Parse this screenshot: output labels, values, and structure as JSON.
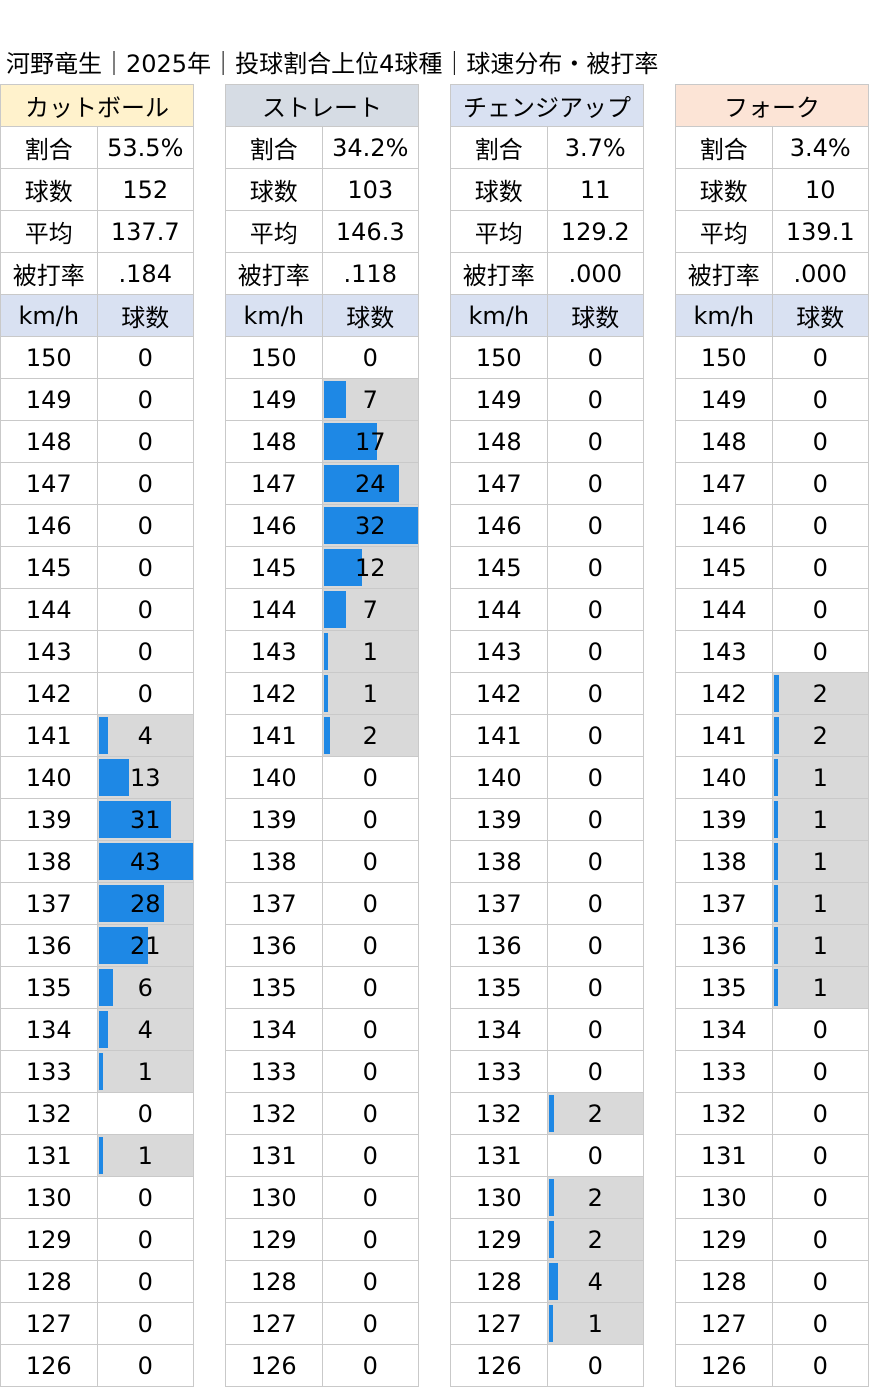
{
  "title": "河野竜生｜2025年｜投球割合上位4球種｜球速分布・被打率",
  "colors": {
    "bar": "#1e88e5",
    "bar_background": "#d9d9d9",
    "header_cutball": "#fff2cc",
    "header_straight": "#d6dce4",
    "header_changeup": "#d9e1f2",
    "header_fork": "#fce4d6",
    "axis_header": "#d9e1f2"
  },
  "stat_labels": {
    "ratio": "割合",
    "count": "球数",
    "avg": "平均",
    "ba": "被打率",
    "speed_col": "km/h",
    "count_col": "球数"
  },
  "panels": [
    {
      "name": "カットボール",
      "ratio": "53.5%",
      "count": "152",
      "avg": "137.7",
      "ba": ".184"
    },
    {
      "name": "ストレート",
      "ratio": "34.2%",
      "count": "103",
      "avg": "146.3",
      "ba": ".118"
    },
    {
      "name": "チェンジアップ",
      "ratio": "3.7%",
      "count": "11",
      "avg": "129.2",
      "ba": ".000"
    },
    {
      "name": "フォーク",
      "ratio": "3.4%",
      "count": "10",
      "avg": "139.1",
      "ba": ".000"
    }
  ],
  "chart_data": {
    "type": "bar",
    "orientation": "horizontal",
    "categories": [
      "150",
      "149",
      "148",
      "147",
      "146",
      "145",
      "144",
      "143",
      "142",
      "141",
      "140",
      "139",
      "138",
      "137",
      "136",
      "135",
      "134",
      "133",
      "132",
      "131",
      "130",
      "129",
      "128",
      "127",
      "126"
    ],
    "xlabel": "球数",
    "ylabel": "km/h",
    "series": [
      {
        "name": "カットボール",
        "max": 43,
        "values": [
          0,
          0,
          0,
          0,
          0,
          0,
          0,
          0,
          0,
          4,
          13,
          31,
          43,
          28,
          21,
          6,
          4,
          1,
          0,
          1,
          0,
          0,
          0,
          0,
          0
        ]
      },
      {
        "name": "ストレート",
        "max": 32,
        "values": [
          0,
          7,
          17,
          24,
          32,
          12,
          7,
          1,
          1,
          2,
          0,
          0,
          0,
          0,
          0,
          0,
          0,
          0,
          0,
          0,
          0,
          0,
          0,
          0,
          0
        ]
      },
      {
        "name": "チェンジアップ",
        "max": 43,
        "values": [
          0,
          0,
          0,
          0,
          0,
          0,
          0,
          0,
          0,
          0,
          0,
          0,
          0,
          0,
          0,
          0,
          0,
          0,
          2,
          0,
          2,
          2,
          4,
          1,
          0
        ]
      },
      {
        "name": "フォーク",
        "max": 43,
        "values": [
          0,
          0,
          0,
          0,
          0,
          0,
          0,
          0,
          2,
          2,
          1,
          1,
          1,
          1,
          1,
          1,
          0,
          0,
          0,
          0,
          0,
          0,
          0,
          0,
          0
        ]
      }
    ]
  }
}
